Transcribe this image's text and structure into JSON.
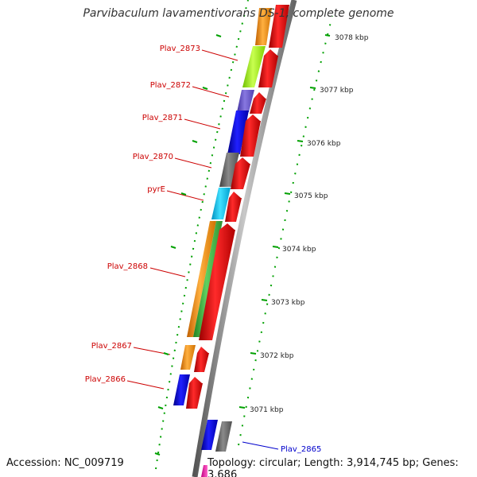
{
  "title": "Parvibaculum lavamentivorans DS-1, complete genome",
  "accession": "Accession: NC_009719",
  "topology": "Topology: circular; Length: 3,914,745 bp; Genes: 3,686",
  "scale_labels": [
    "3078 kbp",
    "3077 kbp",
    "3076 kbp",
    "3075 kbp",
    "3074 kbp",
    "3073 kbp",
    "3072 kbp",
    "3071 kbp"
  ],
  "gene_labels": [
    {
      "text": "Plav_2873",
      "color": "#cc0000"
    },
    {
      "text": "Plav_2872",
      "color": "#cc0000"
    },
    {
      "text": "Plav_2871",
      "color": "#cc0000"
    },
    {
      "text": "Plav_2870",
      "color": "#cc0000"
    },
    {
      "text": "pyrE",
      "color": "#cc0000"
    },
    {
      "text": "Plav_2868",
      "color": "#cc0000"
    },
    {
      "text": "Plav_2867",
      "color": "#cc0000"
    },
    {
      "text": "Plav_2866",
      "color": "#cc0000"
    },
    {
      "text": "Plav_2865",
      "color": "#0000cc"
    }
  ],
  "colors": {
    "cds_red": "#ee0000",
    "orange": "#ff9a10",
    "lime": "#a8ff20",
    "purple": "#7060d0",
    "blue": "#0000ee",
    "gray": "#707070",
    "cyan": "#10c8f0",
    "green": "#40c040",
    "magenta": "#ff20b0",
    "tick_green": "#00a000"
  }
}
